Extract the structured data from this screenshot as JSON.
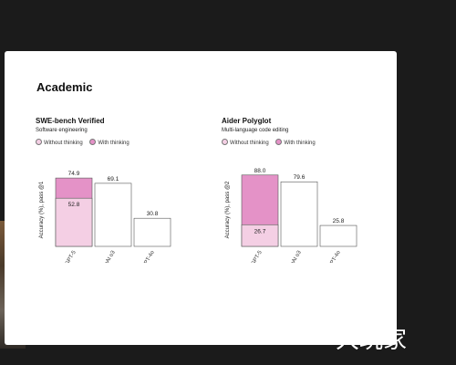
{
  "slide": {
    "title": "Academic"
  },
  "colors": {
    "with_thinking": "#e492c7",
    "without_thinking": "#f4cfe4",
    "baseline_fill": "#ffffff",
    "bar_stroke": "#555555"
  },
  "watermark": {
    "text": "大玩家"
  },
  "chart_data": [
    {
      "type": "bar",
      "title": "SWE-bench Verified",
      "subtitle": "Software engineering",
      "ylabel": "Accuracy (%), pass @1",
      "legend": [
        "Without thinking",
        "With thinking"
      ],
      "categories": [
        "GPT-5",
        "OpenAI o3",
        "GPT-4o"
      ],
      "with_thinking": [
        74.9,
        69.1,
        30.8
      ],
      "without_thinking": [
        52.8,
        null,
        null
      ],
      "ylim": [
        0,
        80
      ]
    },
    {
      "type": "bar",
      "title": "Aider Polyglot",
      "subtitle": "Multi-language code editing",
      "ylabel": "Accuracy (%), pass @2",
      "legend": [
        "Without thinking",
        "With thinking"
      ],
      "categories": [
        "GPT-5",
        "OpenAI o3",
        "GPT-4o"
      ],
      "with_thinking": [
        88.0,
        79.6,
        25.8
      ],
      "without_thinking": [
        26.7,
        null,
        null
      ],
      "ylim": [
        0,
        90
      ]
    }
  ]
}
